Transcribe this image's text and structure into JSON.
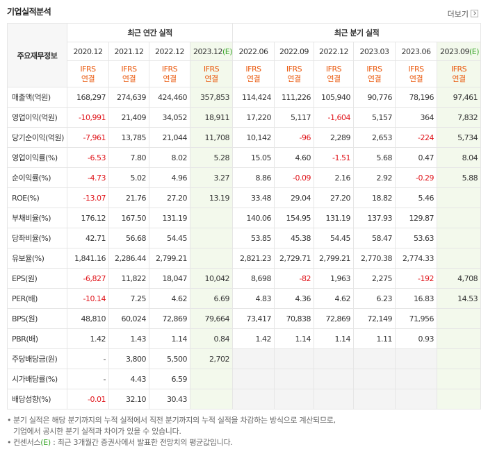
{
  "header": {
    "title": "기업실적분석",
    "more": "더보기"
  },
  "table": {
    "row_header": "주요재무정보",
    "groups": [
      {
        "text": "최근 연간 실적",
        "span": 4
      },
      {
        "text": "최근 분기 실적",
        "span": 6
      }
    ],
    "columns": [
      {
        "period": "2020.12",
        "basis": [
          "IFRS",
          "연결"
        ]
      },
      {
        "period": "2021.12",
        "basis": [
          "IFRS",
          "연결"
        ]
      },
      {
        "period": "2022.12",
        "basis": [
          "IFRS",
          "연결"
        ]
      },
      {
        "period": "2023.12",
        "estimate": "(E)",
        "basis": [
          "IFRS",
          "연결"
        ]
      },
      {
        "period": "2022.06",
        "basis": [
          "IFRS",
          "연결"
        ]
      },
      {
        "period": "2022.09",
        "basis": [
          "IFRS",
          "연결"
        ]
      },
      {
        "period": "2022.12",
        "basis": [
          "IFRS",
          "연결"
        ]
      },
      {
        "period": "2023.03",
        "basis": [
          "IFRS",
          "연결"
        ]
      },
      {
        "period": "2023.06",
        "basis": [
          "IFRS",
          "연결"
        ]
      },
      {
        "period": "2023.09",
        "estimate": "(E)",
        "basis": [
          "IFRS",
          "연결"
        ]
      }
    ],
    "rows": [
      {
        "label": "매출액(억원)",
        "values": [
          "168,297",
          "274,639",
          "424,460",
          "357,853",
          "114,424",
          "111,226",
          "105,940",
          "90,776",
          "78,196",
          "97,461"
        ]
      },
      {
        "label": "영업이익(억원)",
        "values": [
          "-10,991",
          "21,409",
          "34,052",
          "18,911",
          "17,220",
          "5,117",
          "-1,604",
          "5,157",
          "364",
          "7,832"
        ]
      },
      {
        "label": "당기순이익(억원)",
        "values": [
          "-7,961",
          "13,785",
          "21,044",
          "11,708",
          "10,142",
          "-96",
          "2,289",
          "2,653",
          "-224",
          "5,734"
        ]
      },
      {
        "label": "영업이익률(%)",
        "values": [
          "-6.53",
          "7.80",
          "8.02",
          "5.28",
          "15.05",
          "4.60",
          "-1.51",
          "5.68",
          "0.47",
          "8.04"
        ]
      },
      {
        "label": "순이익률(%)",
        "values": [
          "-4.73",
          "5.02",
          "4.96",
          "3.27",
          "8.86",
          "-0.09",
          "2.16",
          "2.92",
          "-0.29",
          "5.88"
        ]
      },
      {
        "label": "ROE(%)",
        "values": [
          "-13.07",
          "21.76",
          "27.20",
          "13.19",
          "33.48",
          "29.04",
          "27.20",
          "18.82",
          "5.46",
          null
        ]
      },
      {
        "label": "부채비율(%)",
        "values": [
          "176.12",
          "167.50",
          "131.19",
          null,
          "140.06",
          "154.95",
          "131.19",
          "137.93",
          "129.87",
          null
        ]
      },
      {
        "label": "당좌비율(%)",
        "values": [
          "42.71",
          "56.68",
          "54.45",
          null,
          "53.85",
          "45.38",
          "54.45",
          "58.47",
          "53.63",
          null
        ]
      },
      {
        "label": "유보율(%)",
        "values": [
          "1,841.16",
          "2,286.44",
          "2,799.21",
          null,
          "2,821.23",
          "2,729.71",
          "2,799.21",
          "2,770.38",
          "2,774.33",
          null
        ]
      },
      {
        "label": "EPS(원)",
        "values": [
          "-6,827",
          "11,822",
          "18,047",
          "10,042",
          "8,698",
          "-82",
          "1,963",
          "2,275",
          "-192",
          "4,708"
        ]
      },
      {
        "label": "PER(배)",
        "values": [
          "-10.14",
          "7.25",
          "4.62",
          "6.69",
          "4.83",
          "4.36",
          "4.62",
          "6.23",
          "16.83",
          "14.53"
        ]
      },
      {
        "label": "BPS(원)",
        "values": [
          "48,810",
          "60,024",
          "72,869",
          "79,664",
          "73,417",
          "70,838",
          "72,869",
          "72,149",
          "71,956",
          null
        ]
      },
      {
        "label": "PBR(배)",
        "values": [
          "1.42",
          "1.43",
          "1.14",
          "0.84",
          "1.42",
          "1.14",
          "1.14",
          "1.11",
          "0.93",
          null
        ]
      },
      {
        "label": "주당배당금(원)",
        "values": [
          "-",
          "3,800",
          "5,500",
          "2,702",
          null,
          null,
          null,
          null,
          null,
          null
        ]
      },
      {
        "label": "시가배당률(%)",
        "values": [
          "-",
          "4.43",
          "6.59",
          null,
          null,
          null,
          null,
          null,
          null,
          null
        ]
      },
      {
        "label": "배당성향(%)",
        "values": [
          "-0.01",
          "32.10",
          "30.43",
          null,
          null,
          null,
          null,
          null,
          null,
          null
        ]
      }
    ]
  },
  "notes": [
    {
      "text": "분기 실적은 해당 분기까지의 누적 실적에서 직전 분기까지의 누적 실적을 차감하는 방식으로 계산되므로,"
    },
    {
      "text": "기업에서 공시한 분기 실적과 차이가 있을 수 있습니다."
    },
    {
      "text": "컨센서스",
      "mark": "(E)",
      "rest": " : 최근 3개월간 증권사에서 발표한 전망치의 평균값입니다."
    }
  ]
}
